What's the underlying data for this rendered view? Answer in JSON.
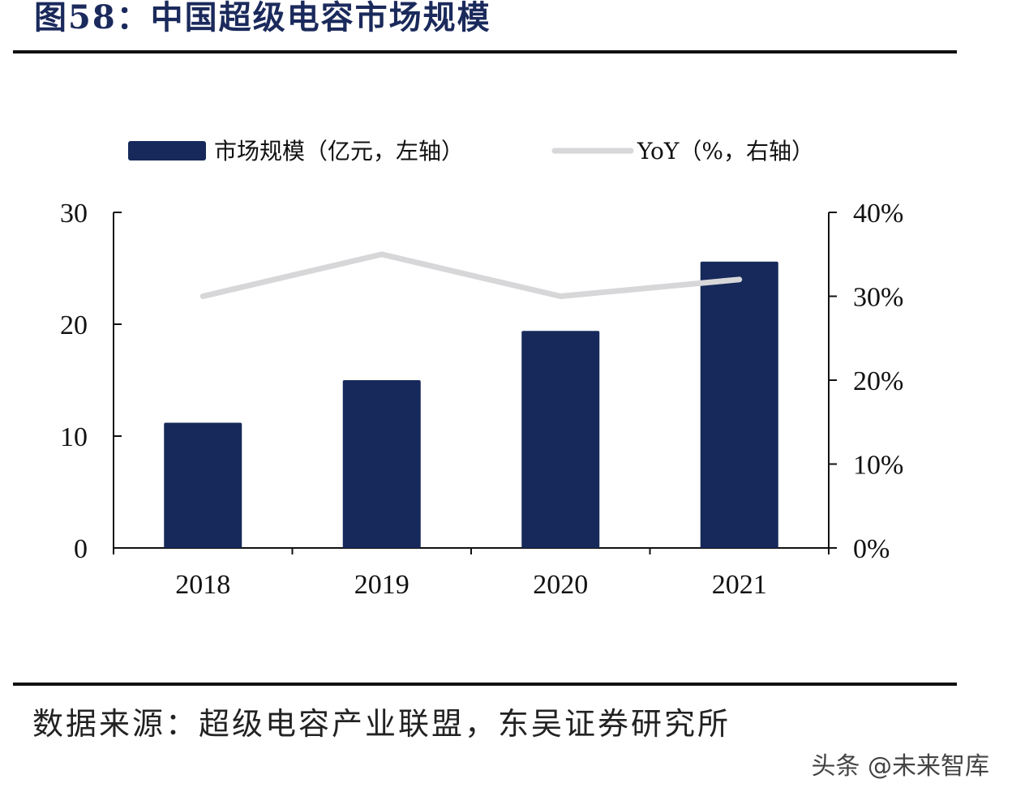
{
  "figure": {
    "title": "图58：中国超级电容市场规模",
    "source": "数据来源：超级电容产业联盟，东吴证券研究所",
    "watermark": "头条 @未来智库"
  },
  "colors": {
    "bar": "#16295a",
    "line": "#d7d7d9",
    "axis": "#111111"
  },
  "chart_data": {
    "type": "bar",
    "title": "中国超级电容市场规模",
    "categories": [
      "2018",
      "2019",
      "2020",
      "2021"
    ],
    "series": [
      {
        "name": "市场规模（亿元，左轴）",
        "type": "bar",
        "axis": "left",
        "values": [
          11.2,
          15.0,
          19.4,
          25.6
        ]
      },
      {
        "name": "YoY（%，右轴）",
        "type": "line",
        "axis": "right",
        "values": [
          30,
          35,
          30,
          32
        ]
      }
    ],
    "left_axis": {
      "ylim": [
        0,
        30
      ],
      "ticks": [
        0,
        10,
        20,
        30
      ],
      "tick_labels": [
        "0",
        "10",
        "20",
        "30"
      ]
    },
    "right_axis": {
      "ylim": [
        0,
        40
      ],
      "ticks": [
        0,
        10,
        20,
        30,
        40
      ],
      "tick_labels": [
        "0%",
        "10%",
        "20%",
        "30%",
        "40%"
      ]
    },
    "legend": {
      "position": "top",
      "labels": [
        "市场规模（亿元，左轴）",
        "YoY（%，右轴）"
      ]
    },
    "grid": false
  }
}
